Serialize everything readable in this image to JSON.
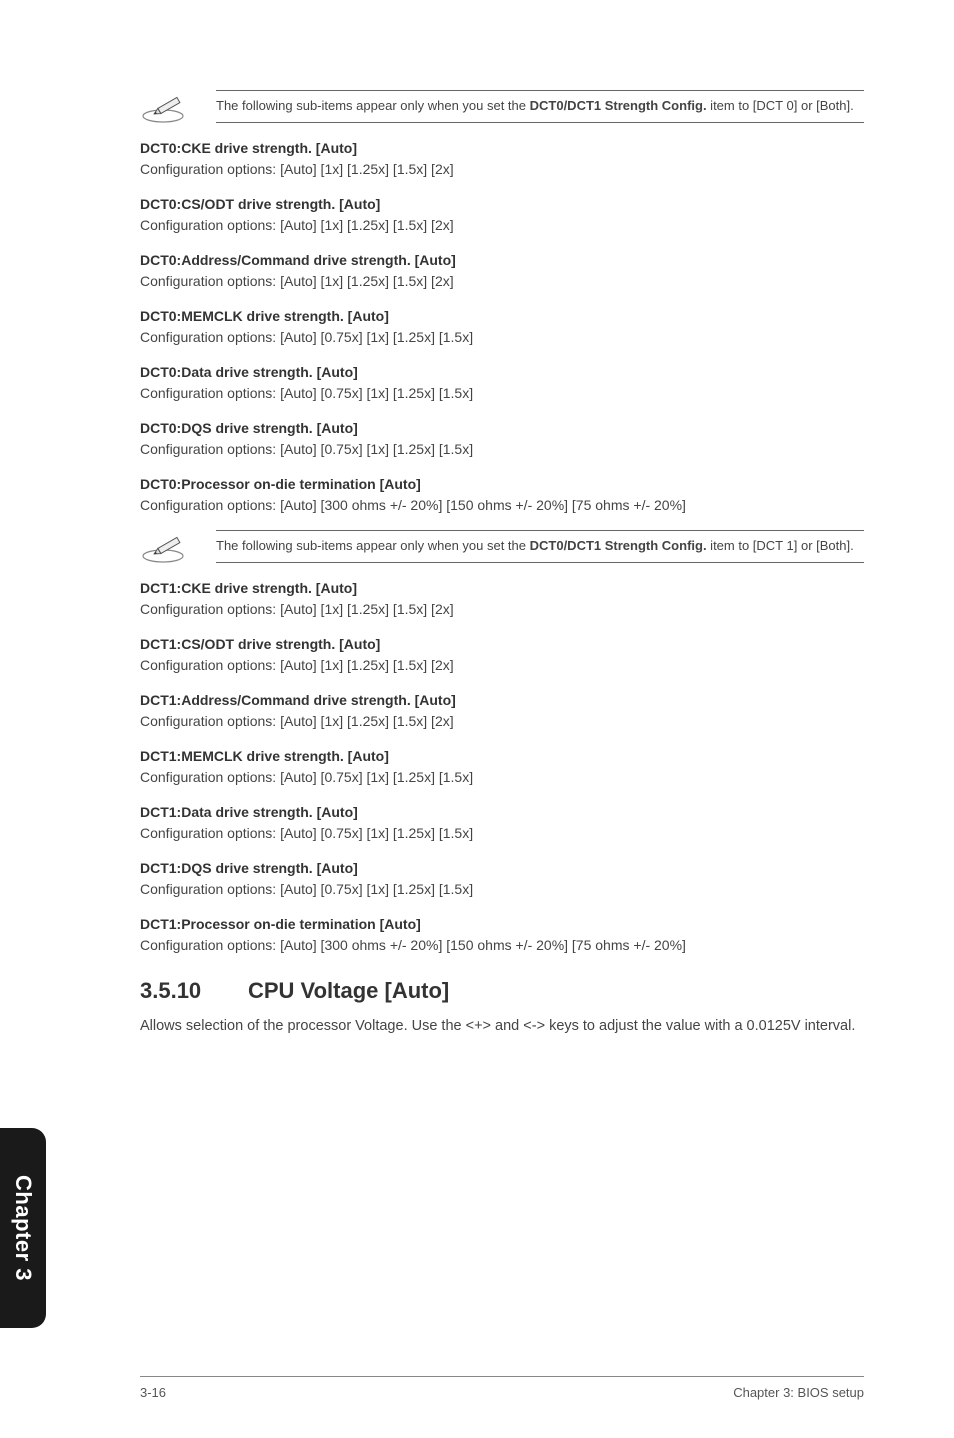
{
  "notes": {
    "note0": {
      "pre": "The following sub-items appear only when you set the ",
      "bold": "DCT0/DCT1 Strength Config.",
      "post": " item to [DCT 0] or [Both]."
    },
    "note1": {
      "pre": "The following sub-items appear only when you set the ",
      "bold": "DCT0/DCT1 Strength Config.",
      "post": " item to [DCT 1] or [Both]."
    }
  },
  "dct0": [
    {
      "title": "DCT0:CKE drive strength. [Auto]",
      "body": "Configuration options: [Auto] [1x] [1.25x] [1.5x] [2x]"
    },
    {
      "title": "DCT0:CS/ODT drive strength. [Auto]",
      "body": "Configuration options: [Auto] [1x] [1.25x] [1.5x] [2x]"
    },
    {
      "title": "DCT0:Address/Command drive strength. [Auto]",
      "body": "Configuration options: [Auto] [1x] [1.25x] [1.5x] [2x]"
    },
    {
      "title": "DCT0:MEMCLK drive strength. [Auto]",
      "body": "Configuration options: [Auto] [0.75x] [1x] [1.25x] [1.5x]"
    },
    {
      "title": "DCT0:Data drive strength. [Auto]",
      "body": "Configuration options: [Auto] [0.75x] [1x] [1.25x] [1.5x]"
    },
    {
      "title": "DCT0:DQS drive strength. [Auto]",
      "body": "Configuration options: [Auto] [0.75x] [1x] [1.25x] [1.5x]"
    },
    {
      "title": "DCT0:Processor on-die termination [Auto]",
      "body": "Configuration options: [Auto] [300 ohms +/- 20%] [150 ohms +/- 20%] [75 ohms +/- 20%]"
    }
  ],
  "dct1": [
    {
      "title": "DCT1:CKE drive strength. [Auto]",
      "body": "Configuration options: [Auto] [1x] [1.25x] [1.5x] [2x]"
    },
    {
      "title": "DCT1:CS/ODT drive strength. [Auto]",
      "body": "Configuration options: [Auto] [1x] [1.25x] [1.5x] [2x]"
    },
    {
      "title": "DCT1:Address/Command drive strength. [Auto]",
      "body": "Configuration options: [Auto] [1x] [1.25x] [1.5x] [2x]"
    },
    {
      "title": "DCT1:MEMCLK drive strength. [Auto]",
      "body": "Configuration options: [Auto] [0.75x] [1x] [1.25x] [1.5x]"
    },
    {
      "title": "DCT1:Data drive strength. [Auto]",
      "body": "Configuration options: [Auto] [0.75x] [1x] [1.25x] [1.5x]"
    },
    {
      "title": "DCT1:DQS drive strength. [Auto]",
      "body": "Configuration options: [Auto] [0.75x] [1x] [1.25x] [1.5x]"
    },
    {
      "title": "DCT1:Processor on-die termination [Auto]",
      "body": "Configuration options: [Auto] [300 ohms +/- 20%] [150 ohms +/- 20%] [75 ohms +/- 20%]"
    }
  ],
  "section": {
    "num": "3.5.10",
    "title": "CPU Voltage [Auto]",
    "body": "Allows selection of the processor Voltage. Use the <+> and <-> keys to adjust the value with a 0.0125V interval."
  },
  "chapterTab": "Chapter 3",
  "footer": {
    "left": "3-16",
    "right": "Chapter 3: BIOS setup"
  },
  "style": {
    "colors": {
      "text": "#333333",
      "body": "#444444",
      "rule": "#666666",
      "tabBg": "#1a1a1a",
      "tabText": "#ffffff",
      "footerRule": "#888888"
    },
    "fonts": {
      "base": 14,
      "note": 13,
      "heading": 22,
      "tab": 22,
      "footer": 13
    }
  }
}
